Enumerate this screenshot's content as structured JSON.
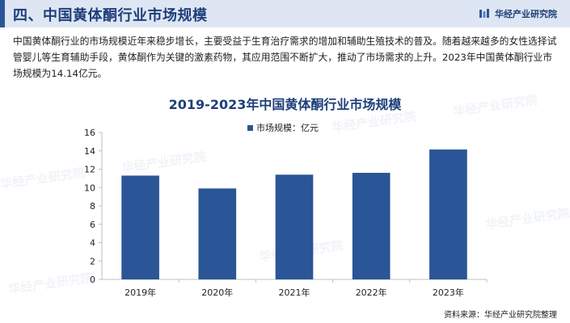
{
  "header": {
    "title": "四、中国黄体酮行业市场规模",
    "brand": "华经产业研究院"
  },
  "intro_text": "中国黄体酮行业的市场规模近年来稳步增长，主要受益于生育治疗需求的增加和辅助生殖技术的普及。随着越来越多的女性选择试管婴儿等生育辅助手段，黄体酮作为关键的激素药物，其应用范围不断扩大，推动了市场需求的上升。2023年中国黄体酮行业市场规模为14.14亿元。",
  "chart_data": {
    "type": "bar",
    "title": "2019-2023年中国黄体酮行业市场规模",
    "categories": [
      "2019年",
      "2020年",
      "2021年",
      "2022年",
      "2023年"
    ],
    "series": [
      {
        "name": "市场规模：亿元",
        "values": [
          11.3,
          9.9,
          11.4,
          11.6,
          14.14
        ]
      }
    ],
    "ylim": [
      0,
      16
    ],
    "yticks": [
      0,
      2,
      4,
      6,
      8,
      10,
      12,
      14,
      16
    ],
    "grid": false,
    "legend": "top-center",
    "colors": {
      "bar": "#2a5596"
    }
  },
  "source": "资料来源：华经产业研究院整理",
  "watermark_text": "华经产业研究院"
}
